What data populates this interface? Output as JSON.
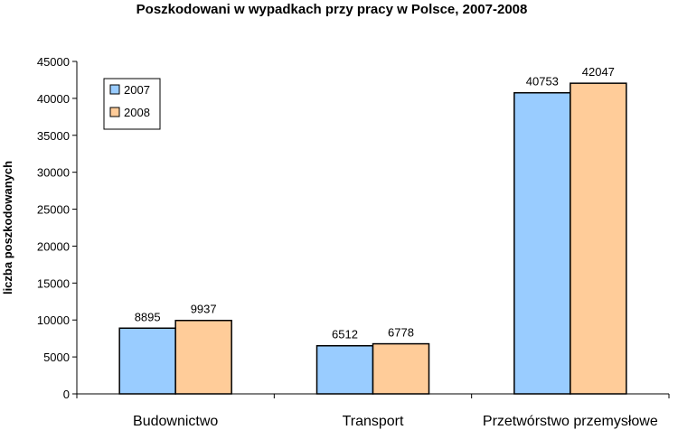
{
  "chart_data": {
    "type": "bar",
    "title": "Poszkodowani w wypadkach przy pracy w Polsce, 2007-2008",
    "xlabel": "",
    "ylabel": "liczba poszkodowanych",
    "categories": [
      "Budownictwo",
      "Transport",
      "Przetwórstwo przemysłowe"
    ],
    "series": [
      {
        "name": "2007",
        "values": [
          8895,
          6512,
          40753
        ],
        "color": "#99ccff"
      },
      {
        "name": "2008",
        "values": [
          9937,
          6778,
          42047
        ],
        "color": "#ffcc99"
      }
    ],
    "ylim": [
      0,
      45000
    ],
    "yticks": [
      0,
      5000,
      10000,
      15000,
      20000,
      25000,
      30000,
      35000,
      40000,
      45000
    ],
    "grid": false,
    "legend": "top-left",
    "data_labels": true
  }
}
